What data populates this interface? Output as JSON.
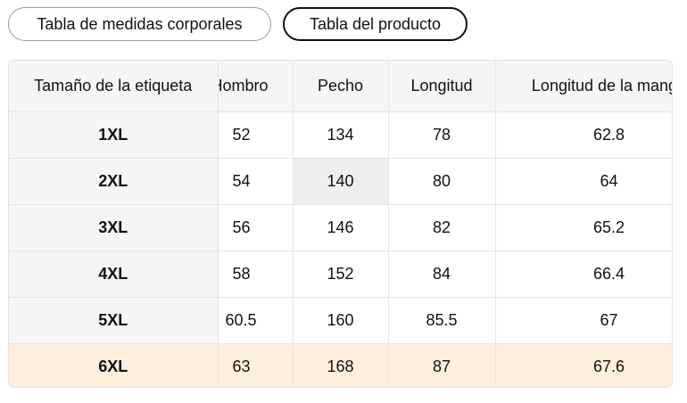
{
  "tabs": [
    {
      "label": "Tabla de medidas corporales",
      "active": false
    },
    {
      "label": "Tabla del producto",
      "active": true
    }
  ],
  "table": {
    "headers": [
      "Tamaño de la etiqueta",
      "Hombro",
      "Pecho",
      "Longitud",
      "Longitud de la manga"
    ],
    "rows": [
      [
        "1XL",
        "52",
        "134",
        "78",
        "62.8"
      ],
      [
        "2XL",
        "54",
        "140",
        "80",
        "64"
      ],
      [
        "3XL",
        "56",
        "146",
        "82",
        "65.2"
      ],
      [
        "4XL",
        "58",
        "152",
        "84",
        "66.4"
      ],
      [
        "5XL",
        "60.5",
        "160",
        "85.5",
        "67"
      ],
      [
        "6XL",
        "63",
        "168",
        "87",
        "67.6"
      ]
    ]
  },
  "colors": {
    "header_bg": "#f5f5f5",
    "highlight_row_bg": "#fdeede",
    "hover_cell_bg": "#eeeeee",
    "border": "#e6e6e6"
  }
}
